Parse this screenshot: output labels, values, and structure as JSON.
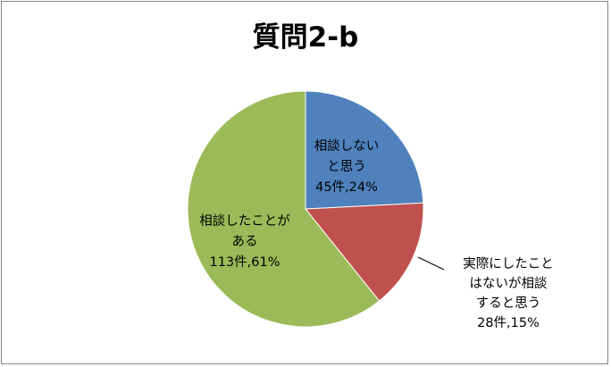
{
  "chart_data": {
    "type": "pie",
    "title": "質問2-b",
    "slices": [
      {
        "label_lines": [
          "相談しない",
          "と思う"
        ],
        "value_text": "45件,24%",
        "count": 45,
        "percent": 24,
        "color": "#4f81bd"
      },
      {
        "label_lines": [
          "実際にしたこと",
          "はないが相談",
          "すると思う"
        ],
        "value_text": "28件,15%",
        "count": 28,
        "percent": 15,
        "color": "#c0504d"
      },
      {
        "label_lines": [
          "相談したことが",
          "ある"
        ],
        "value_text": "113件,61%",
        "count": 113,
        "percent": 61,
        "color": "#9bbb59"
      }
    ],
    "legend": "none"
  }
}
